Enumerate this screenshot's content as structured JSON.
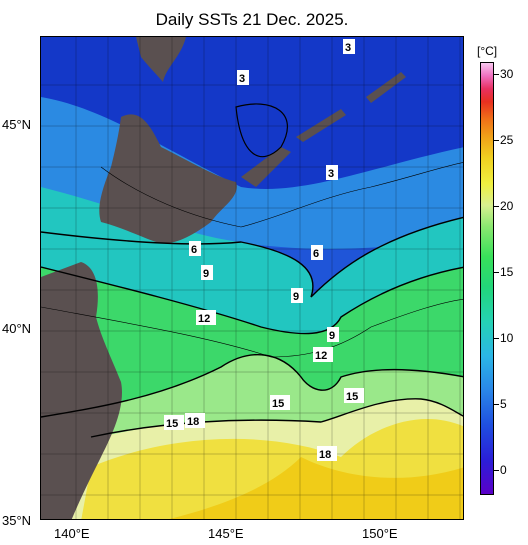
{
  "title": "Daily SSTs 21 Dec. 2025.",
  "colorbar": {
    "unit": "[°C]",
    "ticks": [
      "30",
      "25",
      "20",
      "15",
      "10",
      "5",
      "0"
    ]
  },
  "axes": {
    "latitude_labels": [
      "45°N",
      "40°N",
      "35°N"
    ],
    "longitude_labels": [
      "140°E",
      "145°E",
      "150°E"
    ]
  },
  "contour_labels": [
    "3",
    "3",
    "3",
    "6",
    "6",
    "9",
    "9",
    "9",
    "12",
    "12",
    "15",
    "15",
    "15",
    "18",
    "18"
  ]
}
